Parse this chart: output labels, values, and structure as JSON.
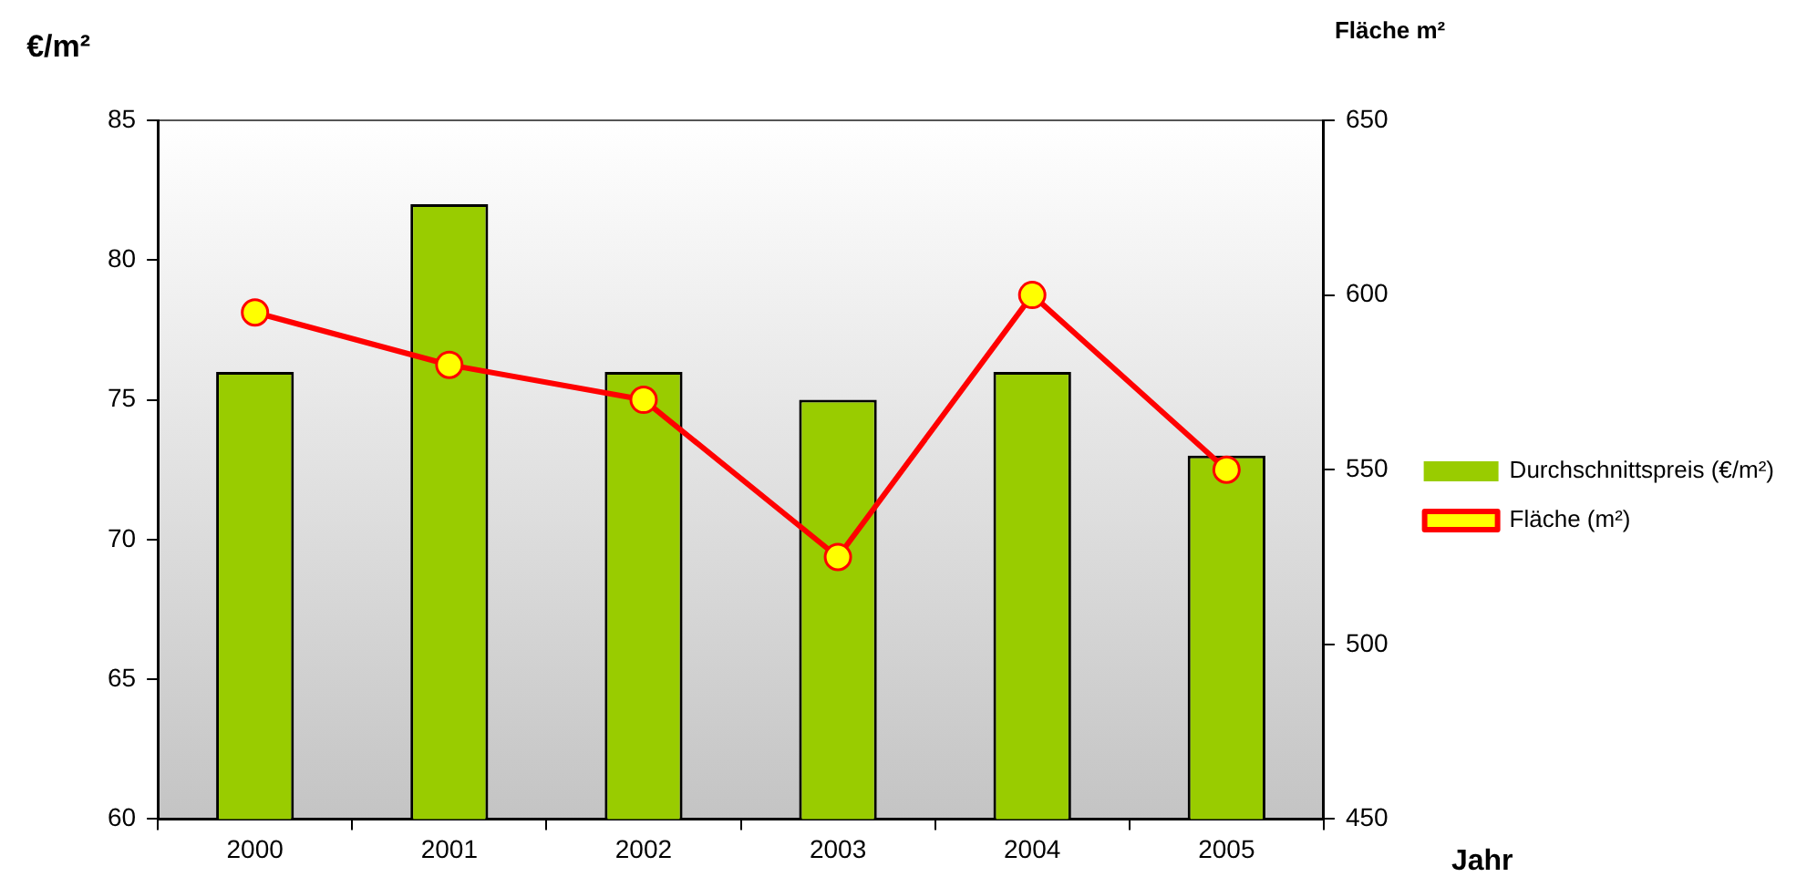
{
  "chart_data": {
    "type": "bar",
    "xlabel": "Jahr",
    "ylabel": "€/m²",
    "y2label": "Fläche m²",
    "categories": [
      "2000",
      "2001",
      "2002",
      "2003",
      "2004",
      "2005"
    ],
    "series": [
      {
        "name": "Durchschnittspreis (€/m²)",
        "color": "#99cc00",
        "values": [
          76,
          82,
          76,
          75,
          76,
          73
        ]
      },
      {
        "name": "Fläche (m²)",
        "type": "line",
        "axis": "y2",
        "color": "#ff0000",
        "marker": "circle",
        "values": [
          595,
          580,
          570,
          525,
          600,
          550
        ]
      }
    ],
    "ylim": [
      60,
      85
    ],
    "yticks": [
      60,
      65,
      70,
      75,
      80,
      85
    ],
    "y2lim": [
      450,
      650
    ],
    "y2ticks": [
      450,
      500,
      550,
      600,
      650
    ],
    "grid": false,
    "legend": "right"
  }
}
